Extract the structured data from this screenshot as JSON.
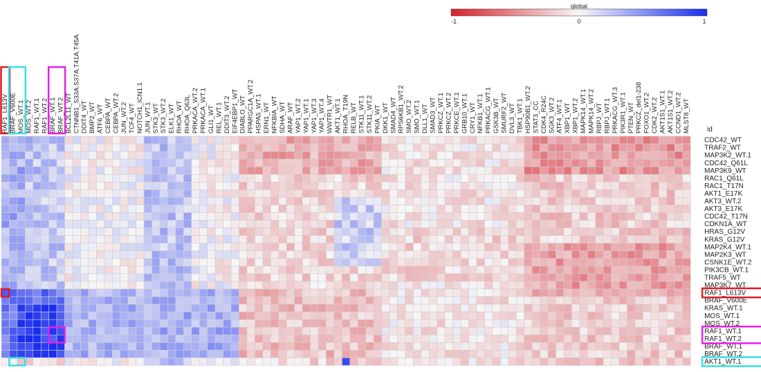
{
  "chart_data": {
    "type": "heatmap",
    "legend": {
      "title": "global",
      "ticks": [
        "-1",
        "0",
        "1"
      ],
      "low_color": "#d6212c",
      "mid_color": "#f7f7f7",
      "high_color": "#1a2ef0"
    },
    "row_header": "id",
    "columns": [
      "RAF1_L613V",
      "BRAF_V600E",
      "MOS_WT.1",
      "MOS_WT.2",
      "RAF1_WT.1",
      "RAF1_WT.2",
      "BRAF_WT.1",
      "BRAF_WT.2",
      "BCL2L11_WT",
      "CTNNB1_S33A.S37A.T41A.T45A",
      "DDIT4_WT",
      "BMP2_WT",
      "ATF6_WT",
      "CEBPA_WT",
      "CEBPA_WT.2",
      "JUN_WT.2",
      "TCF4_WT",
      "NOTCH1_ICN1.1",
      "JUN_WT.1",
      "STK3_WT",
      "STK3_WT.2",
      "ELK1_WT",
      "RHOA_WT",
      "RHOA_Q63L",
      "PRKACA_WT.2",
      "PRKACA_WT.1",
      "GLI1_WT",
      "REL_WT.1",
      "DDIT3_WT.2",
      "EIF4EBP1_WT",
      "DIABLO_WT",
      "PPARGC1A_WT.2",
      "HSPA5_WT.1",
      "ERN1_WT",
      "NFKBIA_WT",
      "SDHA_WT",
      "ARAF_WT",
      "YAP1_WT.2",
      "YAP1_WT.1",
      "YAP1_WT.3",
      "YAP1_WT.4",
      "WWTR1_WT",
      "AKT1_WT.1",
      "RHOA_T19N",
      "RELB_WT",
      "STK11_WT.1",
      "STK11_WT.2",
      "PKIA_WT",
      "DKK1_WT",
      "SMAD4_WT",
      "RPS6KB1_WT.2",
      "SMO_WT.2",
      "SMO_WT.1",
      "DLL1_WT",
      "SMAD3_WT",
      "PRKCZ_WT.1",
      "PRKCZ_WT.2",
      "PRKCE_WT.1",
      "GRB10_WT.1",
      "CRY1_WT",
      "NFKB1_WT.1",
      "PRKACG_WT.1",
      "GSK3B_WT",
      "SMURF2_WT",
      "DVL3_WT",
      "TBK1_WT.1",
      "HSP90B1_WT.2",
      "STAT3_CC",
      "CDK4_R24C",
      "SGK3_WT.2",
      "ATF4_WT.1",
      "XBP1_WT",
      "XBP1_WT.2",
      "MAPK14_WT.1",
      "MAPK14_WT.2",
      "RBPJ_WT",
      "RBPJ_WT.1",
      "PRKACG_WT.3",
      "PIK3R1_WT.1",
      "PTEN_WT",
      "PRKCZ_del1-238",
      "FOXO1_WT.2",
      "CDK2_WT.2",
      "AKT1S1_WT.1",
      "AKT1S1_WT.2",
      "CCND1_WT.2",
      "MLST8_WT"
    ],
    "rows": [
      "CDC42_WT",
      "TRAF2_WT",
      "MAP3K2_WT.1",
      "CDC42_Q61L",
      "MAP3K9_WT",
      "RAC1_Q61L",
      "RAC1_T17N",
      "AKT1_E17K",
      "AKT3_WT.2",
      "AKT3_E17K",
      "CDC42_T17N",
      "CDKN1A_WT",
      "HRAS_G12V",
      "KRAS_G12V",
      "MAP2K4_WT.1",
      "MAP2K3_WT",
      "CSNK1E_WT.2",
      "PIK3CB_WT.1",
      "TRAF5_WT",
      "MAP3K7_WT",
      "RAF1_L613V",
      "BRAF_V600E",
      "KRAS_WT.1",
      "MOS_WT.1",
      "MOS_WT.2",
      "RAF1_WT.1",
      "RAF1_WT.2",
      "BRAF_WT.1",
      "BRAF_WT.2",
      "AKT1_WT.1"
    ],
    "scale_range": [
      -1,
      1
    ],
    "highlights": [
      {
        "color": "#e01b24",
        "columns": [
          "RAF1_L613V"
        ],
        "rows": [
          "RAF1_L613V"
        ]
      },
      {
        "color": "#e81ee8",
        "columns": [
          "BRAF_WT.1",
          "BRAF_WT.2"
        ],
        "rows": [
          "RAF1_WT.1",
          "RAF1_WT.2"
        ]
      },
      {
        "color": "#33e0e8",
        "columns": [
          "BRAF_V600E",
          "MOS_WT.1"
        ],
        "rows": [
          "AKT1_WT.1"
        ]
      }
    ],
    "values": "generated by pattern seed",
    "pattern_seed": 7
  }
}
